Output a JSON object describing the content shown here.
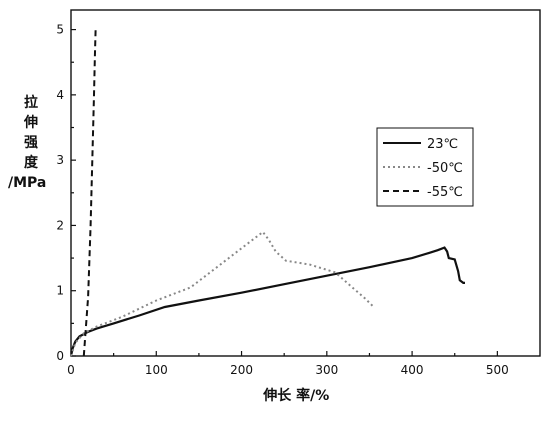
{
  "chart_data": {
    "type": "line",
    "xlabel": "伸长 率/%",
    "ylabel_lines": [
      "拉",
      "伸",
      "强",
      "度",
      "/MPa"
    ],
    "xlim": [
      0,
      550
    ],
    "ylim": [
      0,
      5.3
    ],
    "x_ticks": [
      0,
      100,
      200,
      300,
      400,
      500
    ],
    "y_ticks": [
      0,
      1,
      2,
      3,
      4,
      5
    ],
    "grid": false,
    "legend_position": "right-middle",
    "series": [
      {
        "name": "23℃",
        "style": "solid",
        "color": "#111111",
        "points": [
          [
            0,
            0
          ],
          [
            2,
            0.12
          ],
          [
            5,
            0.22
          ],
          [
            10,
            0.3
          ],
          [
            20,
            0.37
          ],
          [
            30,
            0.42
          ],
          [
            50,
            0.5
          ],
          [
            80,
            0.62
          ],
          [
            110,
            0.75
          ],
          [
            150,
            0.85
          ],
          [
            200,
            0.97
          ],
          [
            250,
            1.1
          ],
          [
            300,
            1.23
          ],
          [
            350,
            1.36
          ],
          [
            400,
            1.5
          ],
          [
            420,
            1.58
          ],
          [
            430,
            1.62
          ],
          [
            438,
            1.66
          ],
          [
            441,
            1.6
          ],
          [
            443,
            1.5
          ],
          [
            450,
            1.48
          ],
          [
            454,
            1.3
          ],
          [
            456,
            1.16
          ],
          [
            460,
            1.12
          ],
          [
            462,
            1.12
          ]
        ]
      },
      {
        "name": "-50℃",
        "style": "dotted",
        "color": "#888888",
        "points": [
          [
            0,
            0
          ],
          [
            5,
            0.2
          ],
          [
            15,
            0.35
          ],
          [
            30,
            0.45
          ],
          [
            60,
            0.6
          ],
          [
            100,
            0.85
          ],
          [
            140,
            1.05
          ],
          [
            170,
            1.35
          ],
          [
            200,
            1.65
          ],
          [
            215,
            1.8
          ],
          [
            225,
            1.9
          ],
          [
            232,
            1.78
          ],
          [
            240,
            1.6
          ],
          [
            252,
            1.46
          ],
          [
            280,
            1.4
          ],
          [
            310,
            1.28
          ],
          [
            330,
            1.05
          ],
          [
            345,
            0.88
          ],
          [
            355,
            0.75
          ]
        ]
      },
      {
        "name": "-55℃",
        "style": "dashed",
        "color": "#111111",
        "points": [
          [
            15,
            0
          ],
          [
            20,
            0.9
          ],
          [
            23,
            2.0
          ],
          [
            25,
            3.0
          ],
          [
            27,
            4.0
          ],
          [
            28,
            4.6
          ],
          [
            29,
            5.05
          ]
        ]
      }
    ]
  }
}
